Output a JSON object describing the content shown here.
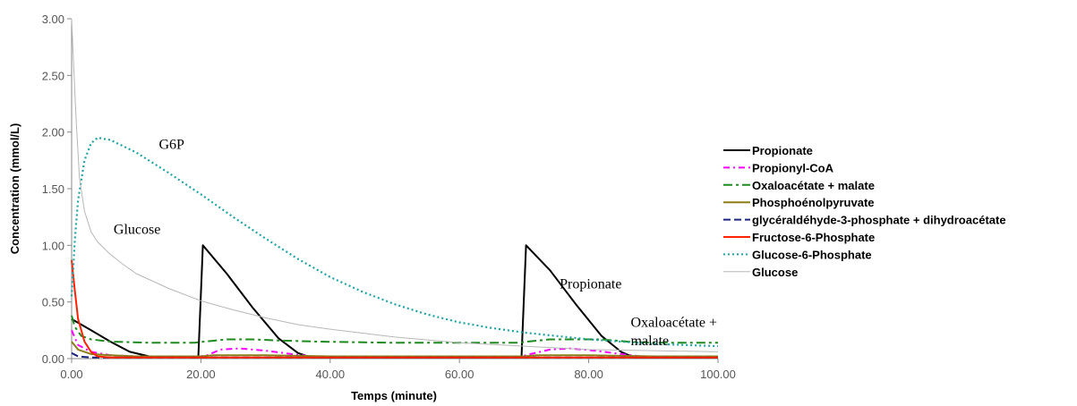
{
  "chart_data": {
    "type": "line",
    "xlabel": "Temps (minute)",
    "ylabel": "Concentration (mmol/L)",
    "xlim": [
      0,
      100
    ],
    "ylim": [
      0,
      3
    ],
    "x_ticks": [
      "0.00",
      "20.00",
      "40.00",
      "60.00",
      "80.00",
      "100.00"
    ],
    "y_ticks": [
      "0.00",
      "0.50",
      "1.00",
      "1.50",
      "2.00",
      "2.50",
      "3.00"
    ],
    "grid": false,
    "legend_position": "right",
    "annotations": [
      {
        "text": "G6P",
        "x": 13.5,
        "y": 1.85
      },
      {
        "text": "Glucose",
        "x": 6.5,
        "y": 1.1
      },
      {
        "text": "Propionate",
        "x": 75.5,
        "y": 0.62
      },
      {
        "text": "Oxaloacétate +",
        "x": 86.5,
        "y": 0.28
      },
      {
        "text": "malate",
        "x": 86.5,
        "y": 0.12
      }
    ],
    "series": [
      {
        "name": "Propionate",
        "color": "#000000",
        "dash": "solid",
        "points": [
          [
            0,
            0.35
          ],
          [
            3,
            0.25
          ],
          [
            6,
            0.15
          ],
          [
            9,
            0.06
          ],
          [
            12,
            0.02
          ],
          [
            19,
            0.01
          ],
          [
            19.6,
            0.01
          ],
          [
            20.3,
            1.0
          ],
          [
            24,
            0.75
          ],
          [
            28,
            0.45
          ],
          [
            32,
            0.18
          ],
          [
            35,
            0.05
          ],
          [
            37,
            0.01
          ],
          [
            69,
            0.01
          ],
          [
            69.6,
            0.01
          ],
          [
            70.3,
            1.0
          ],
          [
            74,
            0.78
          ],
          [
            78,
            0.48
          ],
          [
            82,
            0.2
          ],
          [
            85,
            0.06
          ],
          [
            87,
            0.01
          ],
          [
            100,
            0.01
          ]
        ]
      },
      {
        "name": "Propionyl-CoA",
        "color": "#ff00ff",
        "dash": "7,4,2,4",
        "points": [
          [
            0,
            0.25
          ],
          [
            1,
            0.12
          ],
          [
            3,
            0.06
          ],
          [
            6,
            0.03
          ],
          [
            10,
            0.02
          ],
          [
            19,
            0.01
          ],
          [
            21,
            0.03
          ],
          [
            23,
            0.08
          ],
          [
            26,
            0.09
          ],
          [
            30,
            0.07
          ],
          [
            34,
            0.04
          ],
          [
            37,
            0.02
          ],
          [
            69,
            0.01
          ],
          [
            71,
            0.04
          ],
          [
            74,
            0.08
          ],
          [
            77,
            0.09
          ],
          [
            81,
            0.07
          ],
          [
            85,
            0.04
          ],
          [
            88,
            0.02
          ],
          [
            100,
            0.02
          ]
        ]
      },
      {
        "name": "Oxaloacétate + malate",
        "color": "#1f8a1f",
        "dash": "10,4,3,4",
        "points": [
          [
            0,
            0.38
          ],
          [
            0.5,
            0.28
          ],
          [
            1.5,
            0.2
          ],
          [
            3,
            0.17
          ],
          [
            6,
            0.15
          ],
          [
            12,
            0.14
          ],
          [
            19,
            0.14
          ],
          [
            20.5,
            0.15
          ],
          [
            24,
            0.17
          ],
          [
            28,
            0.17
          ],
          [
            32,
            0.16
          ],
          [
            38,
            0.15
          ],
          [
            50,
            0.14
          ],
          [
            69,
            0.14
          ],
          [
            70.5,
            0.15
          ],
          [
            74,
            0.17
          ],
          [
            78,
            0.17
          ],
          [
            82,
            0.17
          ],
          [
            86,
            0.15
          ],
          [
            90,
            0.14
          ],
          [
            100,
            0.14
          ]
        ]
      },
      {
        "name": "Phosphoénolpyruvate",
        "color": "#8a7d1a",
        "dash": "solid",
        "points": [
          [
            0,
            0.15
          ],
          [
            1,
            0.08
          ],
          [
            3,
            0.04
          ],
          [
            6,
            0.03
          ],
          [
            10,
            0.02
          ],
          [
            20,
            0.02
          ],
          [
            22,
            0.03
          ],
          [
            30,
            0.03
          ],
          [
            40,
            0.02
          ],
          [
            70,
            0.02
          ],
          [
            72,
            0.03
          ],
          [
            80,
            0.03
          ],
          [
            90,
            0.02
          ],
          [
            100,
            0.02
          ]
        ]
      },
      {
        "name": "glycéraldéhyde-3-phosphate + dihydroacétate",
        "color": "#1a237e",
        "dash": "8,4",
        "points": [
          [
            0,
            0.05
          ],
          [
            1,
            0.02
          ],
          [
            3,
            0.01
          ],
          [
            100,
            0.01
          ]
        ]
      },
      {
        "name": "Fructose-6-Phosphate",
        "color": "#ff2200",
        "dash": "solid",
        "points": [
          [
            0,
            0.87
          ],
          [
            0.5,
            0.6
          ],
          [
            1,
            0.35
          ],
          [
            2,
            0.15
          ],
          [
            3,
            0.06
          ],
          [
            4,
            0.02
          ],
          [
            6,
            0.01
          ],
          [
            100,
            0.01
          ]
        ]
      },
      {
        "name": "Glucose-6-Phosphate",
        "color": "#1fa3a3",
        "dash": "2,3",
        "points": [
          [
            0,
            0.55
          ],
          [
            0.5,
            1.05
          ],
          [
            1,
            1.4
          ],
          [
            2,
            1.75
          ],
          [
            3,
            1.9
          ],
          [
            4,
            1.95
          ],
          [
            6,
            1.93
          ],
          [
            10,
            1.82
          ],
          [
            15,
            1.64
          ],
          [
            20,
            1.45
          ],
          [
            25,
            1.25
          ],
          [
            30,
            1.06
          ],
          [
            35,
            0.88
          ],
          [
            40,
            0.72
          ],
          [
            45,
            0.59
          ],
          [
            50,
            0.48
          ],
          [
            55,
            0.39
          ],
          [
            60,
            0.32
          ],
          [
            65,
            0.27
          ],
          [
            70,
            0.23
          ],
          [
            75,
            0.2
          ],
          [
            80,
            0.17
          ],
          [
            85,
            0.15
          ],
          [
            90,
            0.13
          ],
          [
            95,
            0.12
          ],
          [
            100,
            0.11
          ]
        ]
      },
      {
        "name": "Glucose",
        "color": "#b8b8b8",
        "dash": "solid",
        "points": [
          [
            0,
            3.0
          ],
          [
            0.3,
            2.6
          ],
          [
            0.7,
            2.1
          ],
          [
            1.2,
            1.6
          ],
          [
            2,
            1.3
          ],
          [
            3,
            1.12
          ],
          [
            4,
            1.03
          ],
          [
            6,
            0.92
          ],
          [
            8,
            0.83
          ],
          [
            10,
            0.75
          ],
          [
            15,
            0.62
          ],
          [
            20,
            0.51
          ],
          [
            25,
            0.43
          ],
          [
            30,
            0.36
          ],
          [
            35,
            0.3
          ],
          [
            40,
            0.26
          ],
          [
            50,
            0.19
          ],
          [
            60,
            0.14
          ],
          [
            70,
            0.11
          ],
          [
            80,
            0.08
          ],
          [
            90,
            0.07
          ],
          [
            100,
            0.06
          ]
        ]
      }
    ]
  }
}
